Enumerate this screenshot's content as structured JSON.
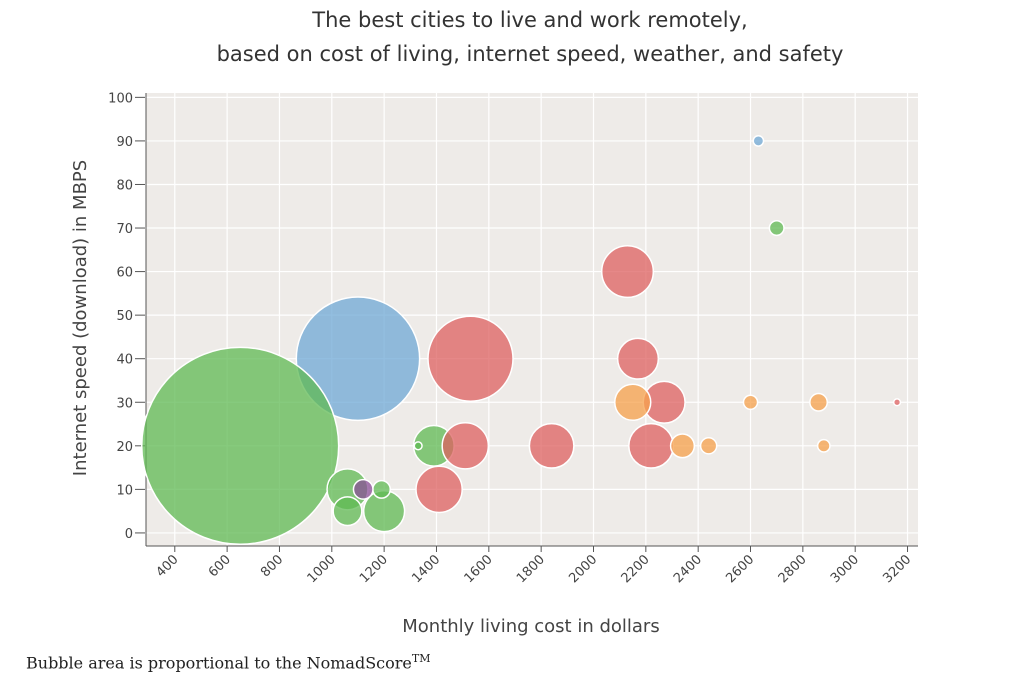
{
  "chart_data": {
    "type": "scatter",
    "title_lines": [
      "The best cities to live and work remotely,",
      "based on cost of living, internet speed, weather, and safety"
    ],
    "xlabel": "Monthly living cost in dollars",
    "ylabel": "Internet speed (download) in MBPS",
    "xlim": [
      290,
      3240
    ],
    "ylim": [
      -3,
      101
    ],
    "x_ticks": [
      "400",
      "600",
      "800",
      "1000",
      "1200",
      "1400",
      "1600",
      "1800",
      "2000",
      "2200",
      "2400",
      "2600",
      "2800",
      "3000",
      "3200"
    ],
    "y_ticks": [
      "0",
      "10",
      "20",
      "30",
      "40",
      "50",
      "60",
      "70",
      "80",
      "90",
      "100"
    ],
    "grid": true,
    "size_encoding": "NomadScore",
    "series": [
      {
        "name": "blue",
        "color": "#6fa8d6",
        "points": [
          {
            "x": 1100,
            "y": 40,
            "score": 1000
          },
          {
            "x": 2630,
            "y": 90,
            "score": 7
          }
        ]
      },
      {
        "name": "green",
        "color": "#5fba53",
        "points": [
          {
            "x": 650,
            "y": 20,
            "score": 2550
          },
          {
            "x": 1060,
            "y": 10,
            "score": 110
          },
          {
            "x": 1060,
            "y": 5,
            "score": 54
          },
          {
            "x": 1200,
            "y": 5,
            "score": 110
          },
          {
            "x": 1190,
            "y": 10,
            "score": 20
          },
          {
            "x": 1390,
            "y": 20,
            "score": 108
          },
          {
            "x": 1330,
            "y": 20,
            "score": 4
          },
          {
            "x": 2700,
            "y": 70,
            "score": 14
          }
        ]
      },
      {
        "name": "red",
        "color": "#de6060",
        "points": [
          {
            "x": 1530,
            "y": 40,
            "score": 475
          },
          {
            "x": 1510,
            "y": 20,
            "score": 140
          },
          {
            "x": 1410,
            "y": 10,
            "score": 140
          },
          {
            "x": 1840,
            "y": 20,
            "score": 130
          },
          {
            "x": 2130,
            "y": 60,
            "score": 175
          },
          {
            "x": 2170,
            "y": 40,
            "score": 109
          },
          {
            "x": 2270,
            "y": 30,
            "score": 115
          },
          {
            "x": 2220,
            "y": 20,
            "score": 130
          },
          {
            "x": 3160,
            "y": 30,
            "score": 3
          }
        ]
      },
      {
        "name": "orange",
        "color": "#f5a04b",
        "points": [
          {
            "x": 2150,
            "y": 30,
            "score": 85
          },
          {
            "x": 2340,
            "y": 20,
            "score": 37
          },
          {
            "x": 2440,
            "y": 20,
            "score": 17
          },
          {
            "x": 2600,
            "y": 30,
            "score": 13
          },
          {
            "x": 2860,
            "y": 30,
            "score": 20
          },
          {
            "x": 2880,
            "y": 20,
            "score": 10
          }
        ]
      },
      {
        "name": "purple",
        "color": "#8a4e97",
        "points": [
          {
            "x": 1120,
            "y": 10,
            "score": 25
          }
        ]
      }
    ]
  },
  "footnote": {
    "text": "Bubble area is proportional to the NomadScore",
    "superscript": "TM"
  }
}
